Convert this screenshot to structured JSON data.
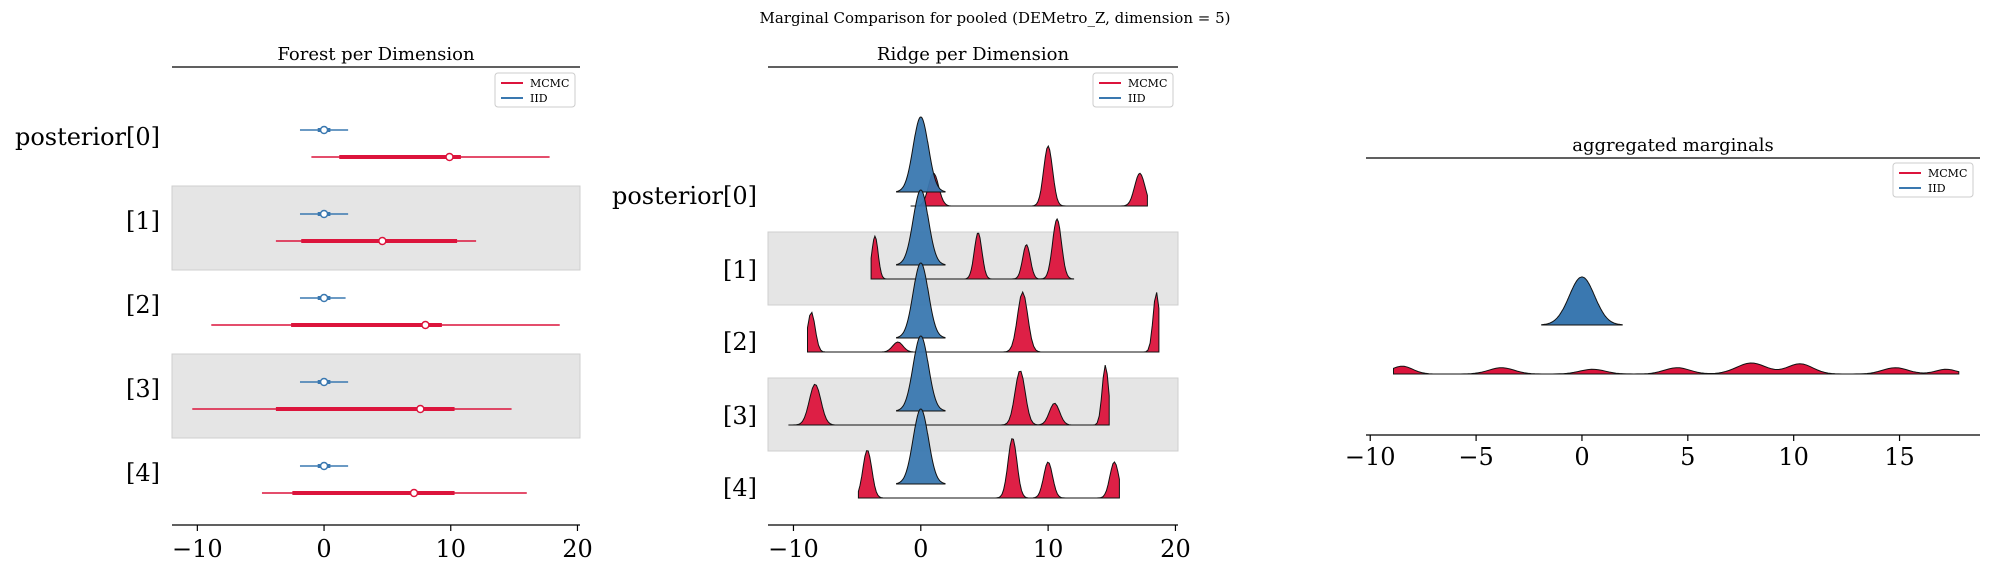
{
  "suptitle": "Marginal Comparison for pooled (DEMetro_Z, dimension = 5)",
  "colors": {
    "mcmc": "#dc143c",
    "iid": "#3a78b0",
    "band": "#e5e5e5"
  },
  "legend": {
    "mcmc": "MCMC",
    "iid": "IID",
    "placement": "top-right"
  },
  "chart_data": [
    {
      "type": "forest",
      "title": "Forest per Dimension",
      "xlim": [
        -12,
        20.2
      ],
      "xticks": [
        -10,
        0,
        10,
        20
      ],
      "xtick_labels": [
        "−10",
        "0",
        "10",
        "20"
      ],
      "rows": [
        "posterior[0]",
        "[1]",
        "[2]",
        "[3]",
        "[4]"
      ],
      "shaded_rows": [
        1,
        3
      ],
      "series": [
        {
          "name": "IID",
          "color": "#3a78b0",
          "intervals": [
            {
              "min": -1.9,
              "q1": -0.5,
              "median": 0.0,
              "q3": 0.5,
              "max": 1.9
            },
            {
              "min": -1.9,
              "q1": -0.5,
              "median": 0.0,
              "q3": 0.5,
              "max": 1.9
            },
            {
              "min": -1.9,
              "q1": -0.5,
              "median": 0.0,
              "q3": 0.5,
              "max": 1.7
            },
            {
              "min": -1.9,
              "q1": -0.5,
              "median": 0.0,
              "q3": 0.5,
              "max": 1.9
            },
            {
              "min": -1.9,
              "q1": -0.5,
              "median": 0.0,
              "q3": 0.5,
              "max": 1.9
            }
          ]
        },
        {
          "name": "MCMC",
          "color": "#dc143c",
          "intervals": [
            {
              "min": -1.0,
              "q1": 1.2,
              "median": 9.9,
              "q3": 10.8,
              "max": 17.8
            },
            {
              "min": -3.8,
              "q1": -1.8,
              "median": 4.6,
              "q3": 10.5,
              "max": 12.0
            },
            {
              "min": -8.9,
              "q1": -2.6,
              "median": 8.0,
              "q3": 9.3,
              "max": 18.6
            },
            {
              "min": -10.4,
              "q1": -3.8,
              "median": 7.6,
              "q3": 10.3,
              "max": 14.8
            },
            {
              "min": -4.9,
              "q1": -2.5,
              "median": 7.1,
              "q3": 10.3,
              "max": 16.0
            }
          ]
        }
      ]
    },
    {
      "type": "ridge",
      "title": "Ridge per Dimension",
      "xlim": [
        -12,
        20.2
      ],
      "xticks": [
        -10,
        0,
        10,
        20
      ],
      "xtick_labels": [
        "−10",
        "0",
        "10",
        "20"
      ],
      "rows": [
        "posterior[0]",
        "[1]",
        "[2]",
        "[3]",
        "[4]"
      ],
      "shaded_rows": [
        1,
        3
      ],
      "series": [
        {
          "name": "IID",
          "color": "#3a78b0",
          "ridges": [
            {
              "range": [
                -1.9,
                1.9
              ],
              "peaks": [
                [
                  0.0,
                  1.0,
                  0.6
                ]
              ]
            },
            {
              "range": [
                -1.9,
                1.9
              ],
              "peaks": [
                [
                  0.0,
                  1.0,
                  0.6
                ]
              ]
            },
            {
              "range": [
                -1.9,
                1.9
              ],
              "peaks": [
                [
                  0.0,
                  1.0,
                  0.6
                ]
              ]
            },
            {
              "range": [
                -1.9,
                1.9
              ],
              "peaks": [
                [
                  0.0,
                  1.0,
                  0.6
                ]
              ]
            },
            {
              "range": [
                -1.9,
                1.9
              ],
              "peaks": [
                [
                  0.0,
                  1.0,
                  0.6
                ]
              ]
            }
          ]
        },
        {
          "name": "MCMC",
          "color": "#dc143c",
          "ridges": [
            {
              "range": [
                -0.8,
                17.8
              ],
              "peaks": [
                [
                  1.0,
                  0.3,
                  0.4
                ],
                [
                  10.0,
                  0.55,
                  0.35
                ],
                [
                  17.2,
                  0.3,
                  0.4
                ]
              ]
            },
            {
              "range": [
                -3.9,
                12.0
              ],
              "peaks": [
                [
                  -3.6,
                  0.25,
                  0.25
                ],
                [
                  4.5,
                  0.27,
                  0.3
                ],
                [
                  8.3,
                  0.2,
                  0.3
                ],
                [
                  10.7,
                  0.35,
                  0.35
                ]
              ]
            },
            {
              "range": [
                -8.9,
                18.7
              ],
              "peaks": [
                [
                  -8.6,
                  0.2,
                  0.3
                ],
                [
                  -1.8,
                  0.05,
                  0.4
                ],
                [
                  8.0,
                  0.3,
                  0.4
                ],
                [
                  18.5,
                  0.3,
                  0.25
                ]
              ]
            },
            {
              "range": [
                -10.4,
                14.8
              ],
              "peaks": [
                [
                  -8.3,
                  0.15,
                  0.45
                ],
                [
                  7.8,
                  0.2,
                  0.4
                ],
                [
                  10.5,
                  0.08,
                  0.4
                ],
                [
                  14.5,
                  0.22,
                  0.25
                ]
              ]
            },
            {
              "range": [
                -4.9,
                15.6
              ],
              "peaks": [
                [
                  -4.2,
                  0.2,
                  0.35
                ],
                [
                  7.2,
                  0.25,
                  0.35
                ],
                [
                  10.0,
                  0.15,
                  0.35
                ],
                [
                  15.2,
                  0.15,
                  0.35
                ]
              ]
            }
          ]
        }
      ]
    },
    {
      "type": "ridge",
      "title": "aggregated marginals",
      "xlim": [
        -10.2,
        18.8
      ],
      "xticks": [
        -10,
        -5,
        0,
        5,
        10,
        15
      ],
      "xtick_labels": [
        "−10",
        "−5",
        "0",
        "5",
        "10",
        "15"
      ],
      "series": [
        {
          "name": "IID",
          "color": "#3a78b0",
          "range": [
            -1.9,
            1.9
          ],
          "peaks": [
            [
              0.0,
              1.0,
              0.6
            ]
          ]
        },
        {
          "name": "MCMC",
          "color": "#dc143c",
          "range": [
            -8.9,
            17.8
          ],
          "peaks": [
            [
              -8.5,
              0.1,
              0.5
            ],
            [
              -3.8,
              0.08,
              0.6
            ],
            [
              0.5,
              0.06,
              0.6
            ],
            [
              4.5,
              0.08,
              0.6
            ],
            [
              8.0,
              0.14,
              0.7
            ],
            [
              10.3,
              0.13,
              0.6
            ],
            [
              14.8,
              0.08,
              0.6
            ],
            [
              17.2,
              0.06,
              0.5
            ]
          ]
        }
      ]
    }
  ]
}
